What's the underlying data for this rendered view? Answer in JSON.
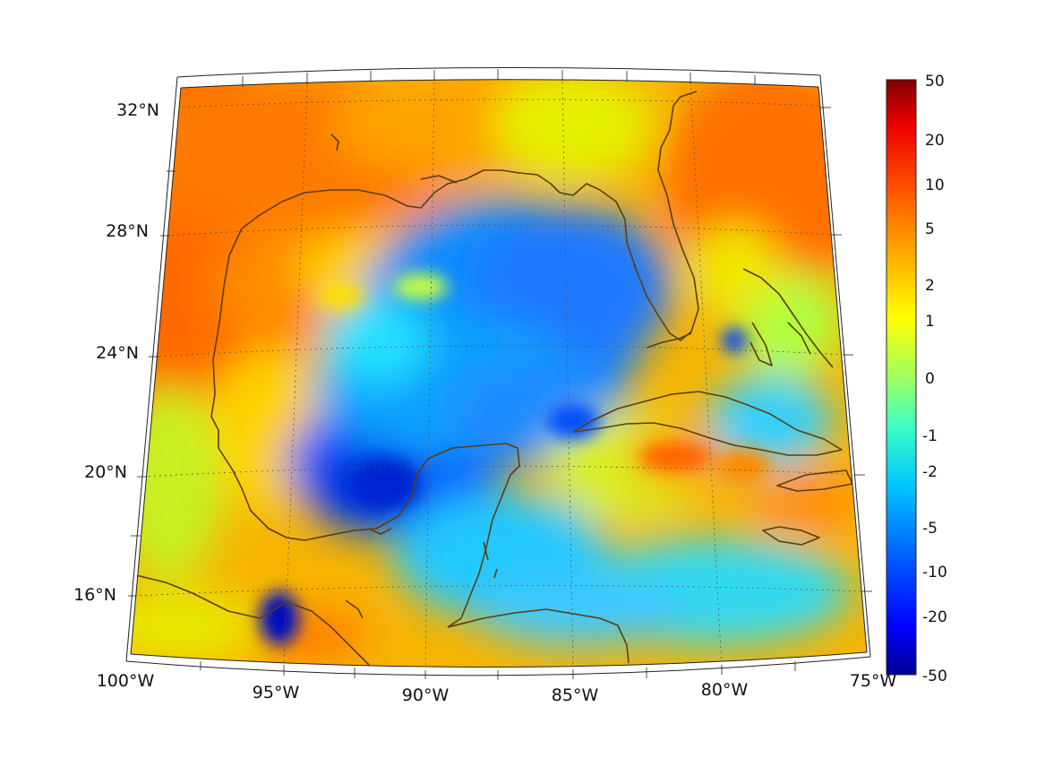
{
  "map": {
    "lon_labels": [
      "100°W",
      "95°W",
      "90°W",
      "85°W",
      "80°W",
      "75°W"
    ],
    "lat_labels": [
      "32°N",
      "28°N",
      "24°N",
      "20°N",
      "16°N"
    ],
    "coastline_color": "#5c3d0e",
    "frame_color": "#222222",
    "grid_color": "#555555"
  },
  "colorbar": {
    "tick_labels": [
      "50",
      "20",
      "10",
      "5",
      "2",
      "1",
      "0",
      "-1",
      "-2",
      "-5",
      "-10",
      "-20",
      "-50"
    ],
    "colormap": "jet",
    "colormap_stops": [
      "#00008f",
      "#0000ff",
      "#0080ff",
      "#00ffff",
      "#80ff80",
      "#ffff00",
      "#ff8000",
      "#ff0000",
      "#800000"
    ]
  }
}
